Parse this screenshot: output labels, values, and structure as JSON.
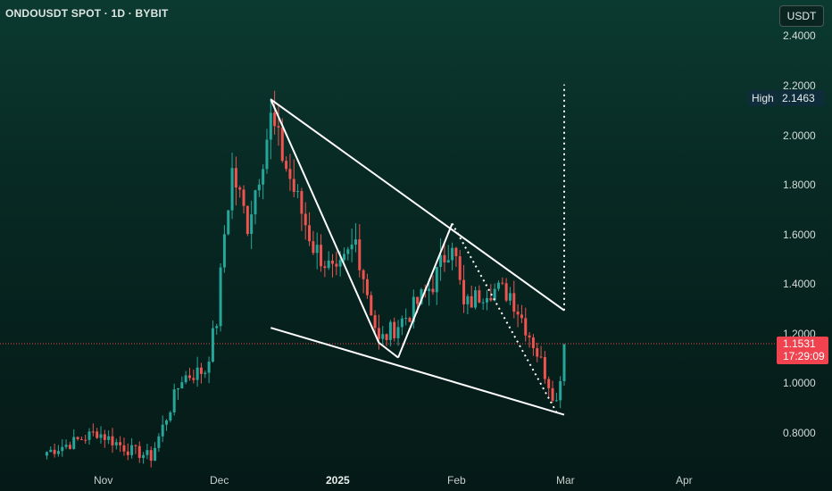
{
  "header": {
    "title": "ONDOUSDT SPOT · 1D · BYBIT",
    "currency_button": "USDT"
  },
  "price_axis": {
    "labels": [
      "2.4000",
      "2.2000",
      "2.0000",
      "1.8000",
      "1.6000",
      "1.4000",
      "1.2000",
      "1.0000",
      "0.8000"
    ]
  },
  "time_axis": {
    "labels": [
      "Nov",
      "Dec",
      "2025",
      "Feb",
      "Mar",
      "Apr"
    ]
  },
  "high_marker": {
    "label": "High",
    "value": "2.1463"
  },
  "current_price": {
    "value": "1.1531",
    "countdown": "17:29:09"
  },
  "colors": {
    "up": "#26a69a",
    "down": "#ef5350",
    "price_line": "#f0434f",
    "drawing": "#ffffff"
  },
  "chart_data": {
    "type": "candlestick",
    "symbol": "ONDOUSDT",
    "interval": "1D",
    "exchange": "BYBIT",
    "ylim": [
      0.72,
      2.5
    ],
    "x_ticks": [
      "Nov",
      "Dec",
      "2025",
      "Feb",
      "Mar",
      "Apr"
    ],
    "high": 2.1463,
    "last_price": 1.1531,
    "close_path": [
      {
        "date": "2024-10-18",
        "close": 0.72
      },
      {
        "date": "2024-10-25",
        "close": 0.76
      },
      {
        "date": "2024-10-31",
        "close": 0.8
      },
      {
        "date": "2024-11-08",
        "close": 0.73
      },
      {
        "date": "2024-11-14",
        "close": 0.7
      },
      {
        "date": "2024-11-22",
        "close": 1.02
      },
      {
        "date": "2024-11-28",
        "close": 1.05
      },
      {
        "date": "2024-12-01",
        "close": 1.25
      },
      {
        "date": "2024-12-03",
        "close": 1.6
      },
      {
        "date": "2024-12-05",
        "close": 1.85
      },
      {
        "date": "2024-12-09",
        "close": 1.64
      },
      {
        "date": "2024-12-15",
        "close": 2.06
      },
      {
        "date": "2024-12-20",
        "close": 1.82
      },
      {
        "date": "2024-12-26",
        "close": 1.55
      },
      {
        "date": "2025-01-01",
        "close": 1.42
      },
      {
        "date": "2025-01-06",
        "close": 1.57
      },
      {
        "date": "2025-01-12",
        "close": 1.16
      },
      {
        "date": "2025-01-20",
        "close": 1.28
      },
      {
        "date": "2025-01-26",
        "close": 1.4
      },
      {
        "date": "2025-01-31",
        "close": 1.58
      },
      {
        "date": "2025-02-03",
        "close": 1.3
      },
      {
        "date": "2025-02-09",
        "close": 1.38
      },
      {
        "date": "2025-02-15",
        "close": 1.36
      },
      {
        "date": "2025-02-21",
        "close": 1.16
      },
      {
        "date": "2025-02-27",
        "close": 0.92
      },
      {
        "date": "2025-03-01",
        "close": 1.15
      }
    ],
    "annotations": {
      "wedge_upper": [
        {
          "date": "2024-12-15",
          "price": 2.14
        },
        {
          "date": "2025-03-01",
          "price": 1.29
        }
      ],
      "wedge_lower": [
        {
          "date": "2024-12-15",
          "price": 1.22
        },
        {
          "date": "2025-03-01",
          "price": 0.87
        }
      ],
      "zigzag": [
        {
          "date": "2024-12-15",
          "price": 2.14
        },
        {
          "date": "2025-01-12",
          "price": 1.16
        },
        {
          "date": "2025-01-17",
          "price": 1.1
        },
        {
          "date": "2025-01-31",
          "price": 1.64
        },
        {
          "date": "2025-02-27",
          "price": 0.88
        }
      ],
      "target_line": {
        "date": "2025-03-01",
        "from": 1.29,
        "to": 2.2
      }
    }
  }
}
